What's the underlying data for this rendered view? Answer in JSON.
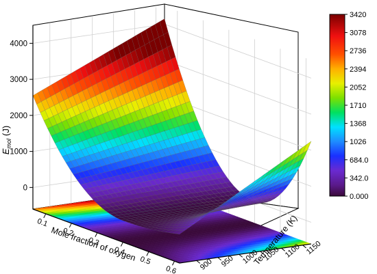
{
  "chart_data": {
    "type": "surface3d",
    "zlabel": {
      "main": "E",
      "sub": "mol",
      "unit": "(J)"
    },
    "xlabel": "Mole fraction of oxygen",
    "ylabel": "Temperature (K)",
    "z_ticks": [
      0,
      1000,
      2000,
      3000,
      4000
    ],
    "x_ticks": [
      0.1,
      0.2,
      0.3,
      0.4,
      0.5,
      0.6
    ],
    "y_ticks": [
      900,
      950,
      1000,
      1050,
      1100,
      1150
    ],
    "zlim": [
      -600,
      4500
    ],
    "xlim": [
      0.05,
      0.62
    ],
    "ylim": [
      860,
      1170
    ],
    "colorbar": {
      "min": 0.0,
      "max": 3420,
      "ticks": [
        "3420",
        "3078",
        "2736",
        "2394",
        "2052",
        "1710",
        "1368",
        "1026",
        "684.0",
        "342.0",
        "0.000"
      ]
    },
    "surface_summary": {
      "at_x_0.05_low_T": 2550,
      "at_x_0.05_high_T": 4150,
      "at_x_0.62_high_T": 2250,
      "minimum_near_x": 0.4,
      "minimum_value": 0
    }
  }
}
